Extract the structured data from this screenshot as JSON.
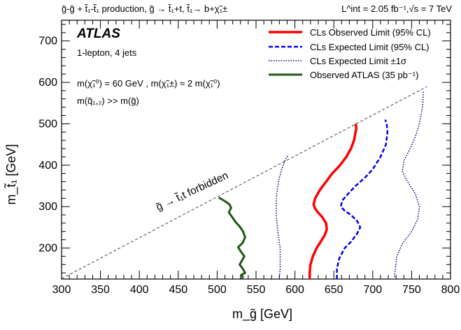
{
  "chart_data": {
    "type": "line",
    "header_left": "g̃-g̃ + t̃₁-t̃₁ production, g̃ → t̃₁+t, t̃₁→ b+χ̃₁±",
    "header_right": "L^int = 2.05 fb⁻¹,√s = 7 TeV",
    "xlabel": "m_g̃ [GeV]",
    "ylabel": "m_t̃₁ [GeV]",
    "xlim": [
      300,
      800
    ],
    "ylim": [
      125,
      750
    ],
    "x_ticks": [
      300,
      350,
      400,
      450,
      500,
      550,
      600,
      650,
      700,
      750,
      800
    ],
    "y_ticks": [
      200,
      300,
      400,
      500,
      600,
      700
    ],
    "grid": false,
    "legend_position": "top-right",
    "annotations": {
      "experiment": "ATLAS",
      "channel": "1-lepton, 4 jets",
      "mass_relation": "m(χ̃₁⁰) = 60 GeV , m(χ̃₁±) ≈ 2 m(χ̃₁⁰)",
      "squark_relation": "m(q̃₁,₂) >> m(g̃)",
      "forbidden": "g̃ → t̃₁t forbidden"
    },
    "series": [
      {
        "name": "CLs Observed Limit (95% CL)",
        "color": "#ff0000",
        "style": "solid",
        "x": [
          619,
          619,
          620,
          623,
          628,
          633,
          638,
          641,
          640,
          635,
          630,
          626,
          624,
          626,
          632,
          640,
          648,
          658,
          666,
          672,
          676,
          678,
          679,
          678
        ],
        "y": [
          125,
          140,
          160,
          180,
          200,
          215,
          230,
          245,
          260,
          275,
          285,
          295,
          305,
          320,
          340,
          360,
          380,
          400,
          420,
          440,
          460,
          480,
          490,
          500
        ]
      },
      {
        "name": "CLs Expected Limit (95% CL)",
        "color": "#0000ee",
        "style": "dashed",
        "x": [
          654,
          654,
          657,
          664,
          672,
          680,
          684,
          680,
          672,
          664,
          659,
          661,
          668,
          678,
          690,
          700,
          710,
          717,
          719,
          718,
          716
        ],
        "y": [
          125,
          150,
          175,
          200,
          215,
          235,
          250,
          265,
          280,
          290,
          300,
          315,
          330,
          350,
          370,
          390,
          420,
          450,
          480,
          500,
          510
        ]
      },
      {
        "name": "CLs Expected Limit ±1σ",
        "color": "#000080",
        "style": "dotted",
        "x": [
          580,
          581,
          581,
          578,
          576,
          576,
          576,
          578,
          580,
          583,
          587,
          590,
          592
        ],
        "y": [
          130,
          150,
          200,
          240,
          280,
          300,
          320,
          350,
          370,
          390,
          410,
          420,
          425
        ]
      },
      {
        "name": "",
        "color": "#000080",
        "style": "dotted",
        "x": [
          728,
          729,
          731,
          738,
          750,
          758,
          760,
          755,
          745,
          738,
          740,
          748,
          755,
          760,
          764,
          765,
          765
        ],
        "y": [
          130,
          150,
          180,
          210,
          240,
          270,
          300,
          330,
          360,
          385,
          410,
          440,
          470,
          500,
          540,
          570,
          580
        ]
      },
      {
        "name": "Observed ATLAS (35 pb⁻¹)",
        "color": "#1e5a12",
        "style": "solid",
        "x": [
          502,
          511,
          516,
          518,
          515,
          520,
          524,
          529,
          533,
          536,
          533,
          527,
          531,
          535,
          532,
          529,
          533,
          536,
          531,
          533,
          531
        ],
        "y": [
          322,
          312,
          305,
          297,
          286,
          273,
          262,
          252,
          241,
          226,
          213,
          202,
          190,
          180,
          170,
          160,
          150,
          140,
          135,
          130,
          125
        ]
      }
    ],
    "kinematic_limit_line": {
      "name": "",
      "color": "#444444",
      "style": "dashed",
      "x": [
        300,
        770
      ],
      "y": [
        126,
        590
      ]
    }
  }
}
